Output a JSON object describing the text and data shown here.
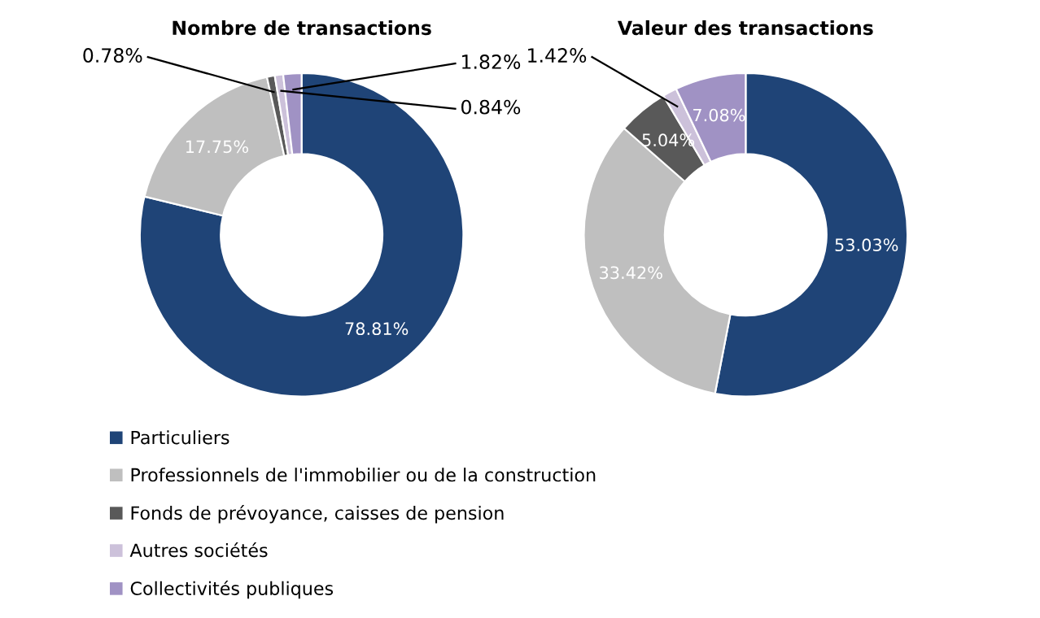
{
  "chart_data": [
    {
      "type": "donut",
      "title": "Nombre de transactions",
      "categories": [
        "Particuliers",
        "Professionnels de l'immobilier ou de la construction",
        "Fonds de prévoyance, caisses de pension",
        "Autres sociétés",
        "Collectivités publiques"
      ],
      "values": [
        78.81,
        17.75,
        0.78,
        0.84,
        1.82
      ],
      "colors": [
        "#1f4477",
        "#bfbfbf",
        "#595959",
        "#ccc1da",
        "#a092c4"
      ],
      "value_labels": [
        "78.81%",
        "17.75%",
        "0.78%",
        "0.84%",
        "1.82%"
      ],
      "legend": "bottom"
    },
    {
      "type": "donut",
      "title": "Valeur des transactions",
      "values": [
        53.03,
        33.42,
        5.04,
        1.42,
        7.08
      ],
      "colors": [
        "#1f4477",
        "#bfbfbf",
        "#595959",
        "#ccc1da",
        "#a092c4"
      ],
      "value_labels": [
        "53.03%",
        "33.42%",
        "5.04%",
        "1.42%",
        "7.08%"
      ],
      "legend": false
    }
  ]
}
